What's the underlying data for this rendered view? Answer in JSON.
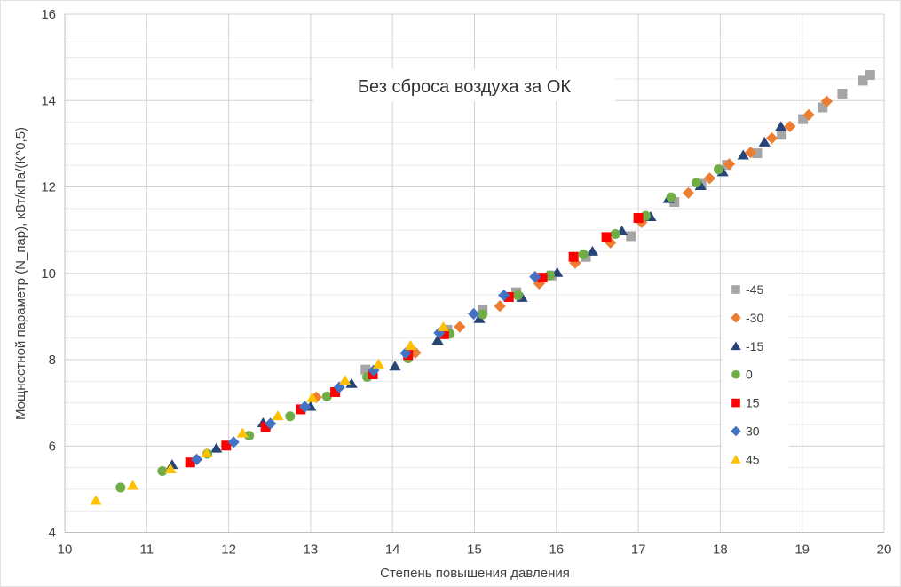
{
  "chart_data": {
    "type": "scatter",
    "title": "Без сброса воздуха за ОК",
    "xlabel": "Степень повышения давления",
    "ylabel": "Мощностной параметр (N_пар), кВт/кПа/(К^0,5)",
    "xlim": [
      10,
      20
    ],
    "ylim": [
      4,
      16
    ],
    "x_ticks": [
      10,
      11,
      12,
      13,
      14,
      15,
      16,
      17,
      18,
      19,
      20
    ],
    "y_ticks": [
      4,
      6,
      8,
      10,
      12,
      14,
      16
    ],
    "x_gridline_step": 1,
    "y_gridline_step": 0.5,
    "grid": true,
    "legend_position": "right-inside",
    "colors": {
      "grid_minor": "#eaeaea",
      "grid_major": "#d2d2d2",
      "axis_line": "#bfbfbf",
      "text": "#404040"
    },
    "series": [
      {
        "name": "-45",
        "marker": "square",
        "color": "#A5A5A5",
        "points": [
          [
            13.67,
            7.77
          ],
          [
            14.67,
            8.69
          ],
          [
            15.1,
            9.15
          ],
          [
            15.51,
            9.56
          ],
          [
            15.94,
            9.95
          ],
          [
            16.36,
            10.38
          ],
          [
            16.91,
            10.86
          ],
          [
            17.44,
            11.65
          ],
          [
            17.77,
            12.07
          ],
          [
            18.08,
            12.51
          ],
          [
            18.45,
            12.78
          ],
          [
            18.75,
            13.21
          ],
          [
            19.01,
            13.57
          ],
          [
            19.25,
            13.84
          ],
          [
            19.49,
            14.16
          ],
          [
            19.74,
            14.46
          ],
          [
            19.83,
            14.59
          ]
        ]
      },
      {
        "name": "-30",
        "marker": "diamond",
        "color": "#ED7D31",
        "points": [
          [
            13.07,
            7.13
          ],
          [
            14.28,
            8.16
          ],
          [
            14.82,
            8.76
          ],
          [
            15.31,
            9.24
          ],
          [
            15.79,
            9.76
          ],
          [
            16.23,
            10.24
          ],
          [
            16.66,
            10.71
          ],
          [
            17.04,
            11.18
          ],
          [
            17.61,
            11.86
          ],
          [
            17.87,
            12.2
          ],
          [
            18.11,
            12.53
          ],
          [
            18.37,
            12.8
          ],
          [
            18.63,
            13.13
          ],
          [
            18.85,
            13.4
          ],
          [
            19.08,
            13.67
          ],
          [
            19.3,
            13.98
          ]
        ]
      },
      {
        "name": "-15",
        "marker": "triangle",
        "color": "#264478",
        "points": [
          [
            11.31,
            5.57
          ],
          [
            11.85,
            5.95
          ],
          [
            12.42,
            6.54
          ],
          [
            13.0,
            6.92
          ],
          [
            13.5,
            7.45
          ],
          [
            14.03,
            7.85
          ],
          [
            14.55,
            8.45
          ],
          [
            15.06,
            8.95
          ],
          [
            15.58,
            9.44
          ],
          [
            16.01,
            10.02
          ],
          [
            16.44,
            10.51
          ],
          [
            16.8,
            10.98
          ],
          [
            17.15,
            11.31
          ],
          [
            17.37,
            11.73
          ],
          [
            17.76,
            12.03
          ],
          [
            18.03,
            12.35
          ],
          [
            18.28,
            12.74
          ],
          [
            18.54,
            13.04
          ],
          [
            18.74,
            13.4
          ]
        ]
      },
      {
        "name": "0",
        "marker": "circle",
        "color": "#70AD47",
        "points": [
          [
            10.68,
            5.04
          ],
          [
            11.19,
            5.42
          ],
          [
            11.74,
            5.82
          ],
          [
            12.25,
            6.24
          ],
          [
            12.75,
            6.69
          ],
          [
            13.2,
            7.15
          ],
          [
            13.69,
            7.6
          ],
          [
            14.19,
            8.03
          ],
          [
            14.7,
            8.6
          ],
          [
            15.1,
            9.05
          ],
          [
            15.53,
            9.49
          ],
          [
            15.92,
            9.95
          ],
          [
            16.33,
            10.44
          ],
          [
            16.72,
            10.91
          ],
          [
            17.09,
            11.33
          ],
          [
            17.4,
            11.76
          ],
          [
            17.71,
            12.1
          ],
          [
            17.98,
            12.41
          ]
        ]
      },
      {
        "name": "15",
        "marker": "square",
        "color": "#FF0000",
        "points": [
          [
            11.53,
            5.62
          ],
          [
            11.97,
            6.01
          ],
          [
            12.45,
            6.44
          ],
          [
            12.88,
            6.85
          ],
          [
            13.3,
            7.25
          ],
          [
            13.76,
            7.66
          ],
          [
            14.19,
            8.11
          ],
          [
            14.63,
            8.59
          ],
          [
            15.42,
            9.45
          ],
          [
            15.83,
            9.9
          ],
          [
            16.21,
            10.38
          ],
          [
            16.61,
            10.84
          ],
          [
            17.0,
            11.28
          ]
        ]
      },
      {
        "name": "30",
        "marker": "diamond",
        "color": "#4472C4",
        "points": [
          [
            11.61,
            5.69
          ],
          [
            12.06,
            6.09
          ],
          [
            12.51,
            6.52
          ],
          [
            12.93,
            6.91
          ],
          [
            13.35,
            7.36
          ],
          [
            13.77,
            7.75
          ],
          [
            14.16,
            8.15
          ],
          [
            14.57,
            8.62
          ],
          [
            14.99,
            9.06
          ],
          [
            15.36,
            9.49
          ],
          [
            15.74,
            9.92
          ]
        ]
      },
      {
        "name": "45",
        "marker": "triangle",
        "color": "#FFC000",
        "points": [
          [
            10.38,
            4.74
          ],
          [
            10.83,
            5.09
          ],
          [
            11.29,
            5.47
          ],
          [
            11.73,
            5.84
          ],
          [
            12.17,
            6.3
          ],
          [
            12.6,
            6.7
          ],
          [
            13.02,
            7.12
          ],
          [
            13.42,
            7.52
          ],
          [
            13.83,
            7.9
          ],
          [
            14.22,
            8.33
          ],
          [
            14.62,
            8.76
          ]
        ]
      }
    ]
  }
}
